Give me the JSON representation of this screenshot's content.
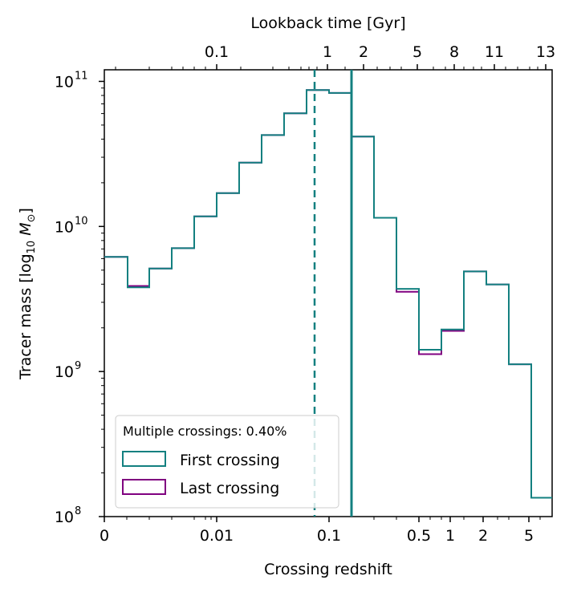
{
  "chart_data": {
    "type": "histogram-step",
    "title": "",
    "xlabel": "Crossing redshift",
    "ylabel_main": "Tracer mass [log",
    "ylabel_sub": "10",
    "ylabel_var": " M",
    "ylabel_sun_sub": "⊙",
    "ylabel_close": "]",
    "top_axis_label": "Lookback time [Gyr]",
    "x_ticks": [
      {
        "label": "0"
      },
      {
        "label": "0.01"
      },
      {
        "label": "0.1"
      },
      {
        "label": "0.5"
      },
      {
        "label": "1"
      },
      {
        "label": "2"
      },
      {
        "label": "5"
      }
    ],
    "top_ticks": [
      {
        "label": "0.1"
      },
      {
        "label": "1"
      },
      {
        "label": "2"
      },
      {
        "label": "5"
      },
      {
        "label": "8"
      },
      {
        "label": "11"
      },
      {
        "label": "13"
      }
    ],
    "y_ticks": [
      {
        "base": "10",
        "exp": "11"
      },
      {
        "base": "10",
        "exp": "10"
      },
      {
        "base": "10",
        "exp": "9"
      },
      {
        "base": "10",
        "exp": "8"
      }
    ],
    "ylim_log10": [
      8,
      11.08
    ],
    "series": [
      {
        "name": "First crossing",
        "color": "#138080",
        "log10_mass": [
          9.79,
          9.58,
          9.71,
          9.85,
          10.07,
          10.23,
          10.44,
          10.63,
          10.78,
          10.94,
          10.92,
          10.62,
          10.06,
          9.57,
          9.15,
          9.29,
          9.69,
          9.6,
          9.05,
          8.13
        ]
      },
      {
        "name": "Last crossing",
        "color": "#800080",
        "log10_mass": [
          9.79,
          9.59,
          9.71,
          9.85,
          10.07,
          10.23,
          10.44,
          10.63,
          10.78,
          10.94,
          10.92,
          10.62,
          10.06,
          9.55,
          9.12,
          9.28,
          9.69,
          9.6,
          9.05,
          8.13
        ]
      }
    ],
    "reference_lines": [
      {
        "style": "dashed",
        "color": "#138080",
        "note": "median first crossing"
      },
      {
        "style": "solid",
        "color": "#138080",
        "note": "median last crossing"
      }
    ],
    "legend": {
      "title": "Multiple crossings: 0.40%",
      "entries": [
        "First crossing",
        "Last crossing"
      ],
      "placement": "bottom-left"
    }
  }
}
